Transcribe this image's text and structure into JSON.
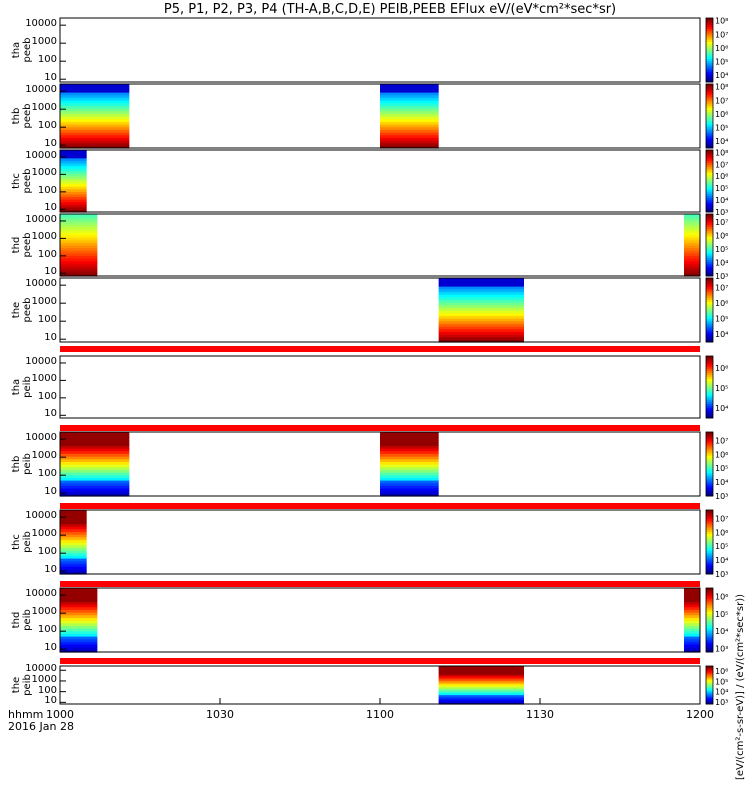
{
  "title": "P5, P1, P2, P3, P4 (TH-A,B,C,D,E) PEIB,PEEB EFlux eV/(eV*cm²*sec*sr)",
  "x_axis": {
    "hhmm_label": "hhmm",
    "date_label": "2016 Jan 28",
    "ticks": [
      "1000",
      "1030",
      "1100",
      "1130",
      "1200"
    ]
  },
  "colorbar_unit": "[eV/(cm²-s-sr-eV)] / (eV/(cm²*sec*sr))",
  "colors": {
    "red_band": "#ff0000",
    "frame": "#000000"
  },
  "chart_data": {
    "type": "heatmap",
    "x_range_minutes": [
      0,
      120
    ],
    "y_scale": "log",
    "y_range_eV": [
      7,
      25000
    ],
    "y_ticks": [
      "10",
      "100",
      "1000",
      "10000"
    ],
    "panels": [
      {
        "id": "tha-peeb",
        "label_top": "tha",
        "label_bottom": "peeb",
        "cb_exps": [
          4,
          5,
          6,
          7,
          8
        ],
        "cb_min": 3.5,
        "cb_max": 8.2,
        "blocks": []
      },
      {
        "id": "thb-peeb",
        "label_top": "thb",
        "label_bottom": "peeb",
        "cb_exps": [
          4,
          5,
          6,
          7,
          8
        ],
        "cb_min": 3.5,
        "cb_max": 8.2,
        "blocks": [
          [
            0,
            13
          ],
          [
            60,
            71
          ]
        ],
        "style": "electron"
      },
      {
        "id": "thc-peeb",
        "label_top": "thc",
        "label_bottom": "peeb",
        "cb_exps": [
          3,
          4,
          5,
          6,
          7,
          8
        ],
        "cb_min": 3,
        "cb_max": 8.2,
        "blocks": [
          [
            0,
            5
          ]
        ],
        "style": "electron"
      },
      {
        "id": "thd-peeb",
        "label_top": "thd",
        "label_bottom": "peeb",
        "cb_exps": [
          3,
          4,
          5,
          6,
          7
        ],
        "cb_min": 3,
        "cb_max": 7.6,
        "blocks": [
          [
            0,
            7
          ],
          [
            117,
            120
          ]
        ],
        "style": "electron-hot"
      },
      {
        "id": "the-peeb",
        "label_top": "the",
        "label_bottom": "peeb",
        "cb_exps": [
          4,
          5,
          6,
          7
        ],
        "cb_min": 3.5,
        "cb_max": 7.6,
        "blocks": [
          [
            71,
            87
          ]
        ],
        "style": "electron"
      },
      {
        "id": "tha-peib",
        "label_top": "tha",
        "label_bottom": "peib",
        "cb_exps": [
          4,
          5,
          6
        ],
        "cb_min": 3.5,
        "cb_max": 6.6,
        "blocks": []
      },
      {
        "id": "thb-peib",
        "label_top": "thb",
        "label_bottom": "peib",
        "cb_exps": [
          3,
          4,
          5,
          6,
          7
        ],
        "cb_min": 3,
        "cb_max": 7.6,
        "blocks": [
          [
            0,
            13
          ],
          [
            60,
            71
          ]
        ],
        "style": "ion"
      },
      {
        "id": "thc-peib",
        "label_top": "thc",
        "label_bottom": "peib",
        "cb_exps": [
          3,
          4,
          5,
          6,
          7
        ],
        "cb_min": 3,
        "cb_max": 7.6,
        "blocks": [
          [
            0,
            5
          ]
        ],
        "style": "ion"
      },
      {
        "id": "thd-peib",
        "label_top": "thd",
        "label_bottom": "peib",
        "cb_exps": [
          3,
          4,
          5,
          6
        ],
        "cb_min": 2.8,
        "cb_max": 6.5,
        "blocks": [
          [
            0,
            7
          ],
          [
            117,
            120
          ]
        ],
        "style": "ion"
      },
      {
        "id": "the-peib",
        "label_top": "the",
        "label_bottom": "peib",
        "cb_exps": [
          3,
          4,
          5,
          6
        ],
        "cb_min": 2.8,
        "cb_max": 6.5,
        "blocks": [
          [
            71,
            87
          ]
        ],
        "style": "ion"
      }
    ]
  }
}
